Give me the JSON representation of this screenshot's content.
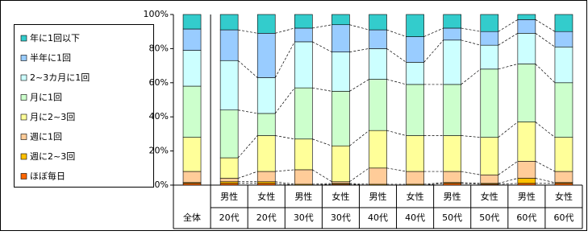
{
  "chart_data": {
    "type": "stacked_bar_percent",
    "categories": [
      [
        "全体"
      ],
      [
        "男性",
        "20代"
      ],
      [
        "女性",
        "20代"
      ],
      [
        "男性",
        "30代"
      ],
      [
        "女性",
        "30代"
      ],
      [
        "男性",
        "40代"
      ],
      [
        "女性",
        "40代"
      ],
      [
        "男性",
        "50代"
      ],
      [
        "女性",
        "50代"
      ],
      [
        "男性",
        "60代"
      ],
      [
        "女性",
        "60代"
      ]
    ],
    "series": [
      {
        "name": "ほぼ毎日",
        "color": "#ff6600",
        "values": [
          1,
          1,
          1,
          0,
          0.5,
          0,
          0,
          1,
          0.5,
          1,
          1
        ]
      },
      {
        "name": "週に2~3回",
        "color": "#ffc000",
        "values": [
          0.5,
          1,
          1,
          0.5,
          0.5,
          0.5,
          0.5,
          0.5,
          0.5,
          3,
          0.5
        ]
      },
      {
        "name": "週に1回",
        "color": "#ffcc99",
        "values": [
          6.5,
          2,
          6,
          8.5,
          1,
          9.5,
          7.5,
          6.5,
          5,
          10,
          6.5
        ]
      },
      {
        "name": "月に2~3回",
        "color": "#ffff99",
        "values": [
          20,
          12,
          21,
          18,
          21,
          22,
          21,
          21,
          22,
          23,
          20
        ]
      },
      {
        "name": "月に1回",
        "color": "#ccffcc",
        "values": [
          30,
          28,
          13,
          30,
          32,
          30,
          30,
          30,
          40,
          34,
          32
        ]
      },
      {
        "name": "2~3カ月に1回",
        "color": "#ccffff",
        "values": [
          21,
          29,
          21,
          27,
          23,
          18,
          13,
          26,
          14,
          18,
          21
        ]
      },
      {
        "name": "半年に1回",
        "color": "#99ccff",
        "values": [
          12.5,
          18,
          26,
          8,
          16,
          11,
          15,
          7,
          8,
          8,
          9
        ]
      },
      {
        "name": "年に1回以下",
        "color": "#33cccc",
        "values": [
          8.5,
          9,
          11,
          8,
          6,
          9,
          13,
          8,
          10,
          3,
          10
        ]
      }
    ],
    "ylim": [
      0,
      100
    ],
    "yticks": [
      {
        "value": 0,
        "label": "0%"
      },
      {
        "value": 20,
        "label": "20%"
      },
      {
        "value": 40,
        "label": "40%"
      },
      {
        "value": 60,
        "label": "60%"
      },
      {
        "value": 80,
        "label": "80%"
      },
      {
        "value": 100,
        "label": "100%"
      }
    ]
  }
}
